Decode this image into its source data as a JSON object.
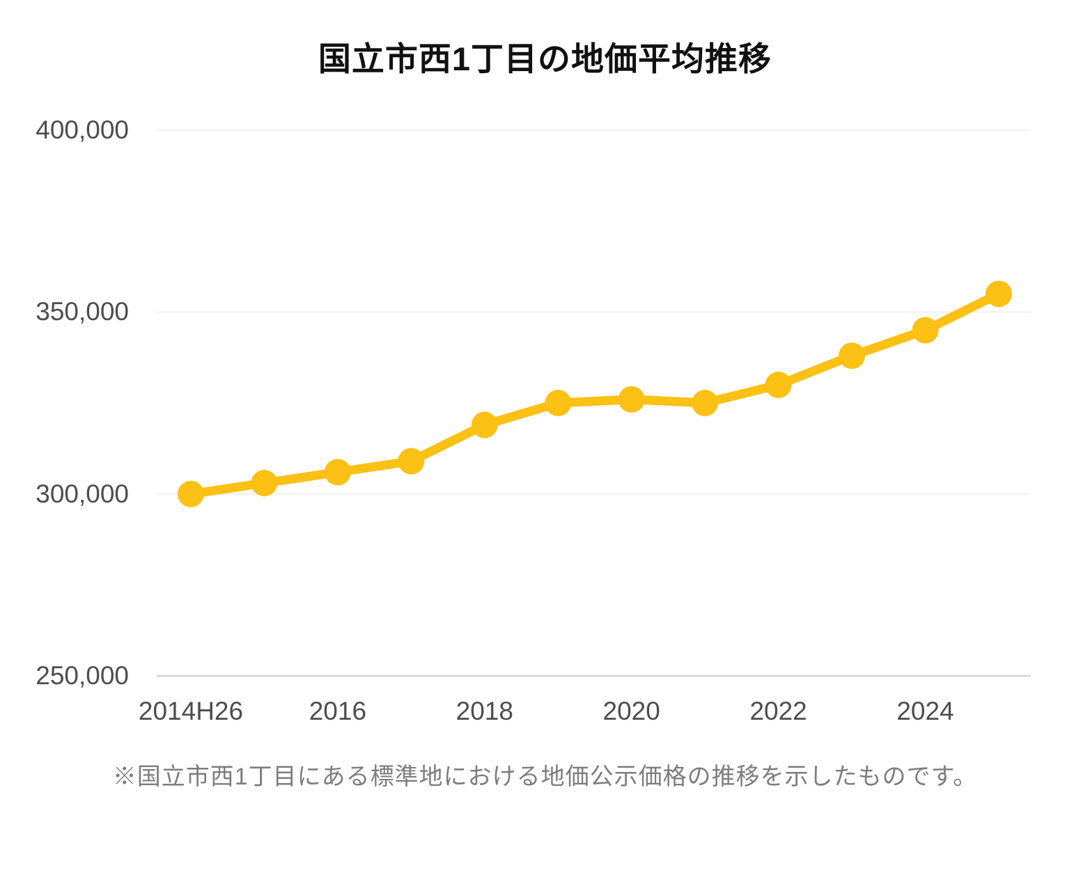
{
  "chart_data": {
    "type": "line",
    "title": "国立市西1丁目の地価平均推移",
    "note": "※国立市西1丁目にある標準地における地価公示価格の推移を示したものです。",
    "x": [
      2014,
      2015,
      2016,
      2017,
      2018,
      2019,
      2020,
      2021,
      2022,
      2023,
      2024,
      2025
    ],
    "values": [
      300000,
      303000,
      306000,
      309000,
      319000,
      325000,
      326000,
      325000,
      330000,
      338000,
      345000,
      355000
    ],
    "x_ticks": [
      {
        "label": "2014H26",
        "year": 2014
      },
      {
        "label": "2016",
        "year": 2016
      },
      {
        "label": "2018",
        "year": 2018
      },
      {
        "label": "2020",
        "year": 2020
      },
      {
        "label": "2022",
        "year": 2022
      },
      {
        "label": "2024",
        "year": 2024
      }
    ],
    "y_ticks": [
      {
        "label": "400,000",
        "value": 400000
      },
      {
        "label": "350,000",
        "value": 350000
      },
      {
        "label": "300,000",
        "value": 300000
      },
      {
        "label": "250,000",
        "value": 250000
      }
    ],
    "ylim": [
      250000,
      400000
    ],
    "grid": true,
    "legend": "none",
    "colors": {
      "line": "#FCC114",
      "marker": "#FCC114",
      "gridline": "#F1F1F1",
      "axis_line": "#D4D4D4",
      "tick_text": "#4d4d4d",
      "title_text": "#111111",
      "note_text": "#7d7d7d"
    }
  }
}
